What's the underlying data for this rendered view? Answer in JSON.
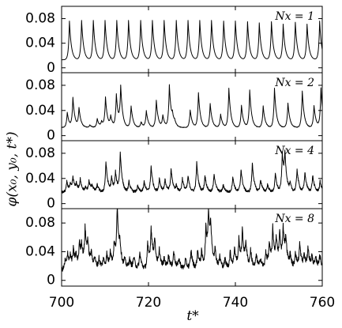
{
  "chart_data": {
    "type": "line",
    "title": "",
    "xlabel": "t*",
    "ylabel": "φ(x₀, y₀, t*)",
    "xlim": [
      700,
      760
    ],
    "x_ticks": [
      "700",
      "720",
      "740",
      "760"
    ],
    "x_tick_values": [
      700,
      720,
      740,
      760
    ],
    "grid": false,
    "legend": "none",
    "panels": [
      {
        "label": "Nx = 1",
        "ylim": [
          -0.008,
          0.1
        ],
        "y_ticks": [
          "0",
          "0.04",
          "0.08"
        ],
        "y_tick_values": [
          0,
          0.04,
          0.08
        ],
        "baseline": 0.013,
        "peaks": [
          [
            701.8,
            0.076
          ],
          [
            704.6,
            0.077
          ],
          [
            707.3,
            0.077
          ],
          [
            710.0,
            0.077
          ],
          [
            712.7,
            0.077
          ],
          [
            715.4,
            0.077
          ],
          [
            718.2,
            0.077
          ],
          [
            720.9,
            0.077
          ],
          [
            723.6,
            0.077
          ],
          [
            726.4,
            0.077
          ],
          [
            729.1,
            0.077
          ],
          [
            731.8,
            0.077
          ],
          [
            734.5,
            0.077
          ],
          [
            737.3,
            0.076
          ],
          [
            740.0,
            0.076
          ],
          [
            742.8,
            0.075
          ],
          [
            745.5,
            0.073
          ],
          [
            748.3,
            0.075
          ],
          [
            751.0,
            0.071
          ],
          [
            753.8,
            0.074
          ],
          [
            756.5,
            0.071
          ],
          [
            759.4,
            0.076
          ]
        ]
      },
      {
        "label": "Nx = 2",
        "ylim": [
          -0.008,
          0.1
        ],
        "y_ticks": [
          "0",
          "0.04",
          "0.08"
        ],
        "y_tick_values": [
          0,
          0.04,
          0.08
        ],
        "baseline": 0.013,
        "peaks": [
          [
            701.3,
            0.037
          ],
          [
            702.6,
            0.06
          ],
          [
            704.0,
            0.043
          ],
          [
            706.5,
            0.017
          ],
          [
            708.2,
            0.027
          ],
          [
            709.2,
            0.022
          ],
          [
            710.1,
            0.06
          ],
          [
            711.3,
            0.03
          ],
          [
            712.6,
            0.065
          ],
          [
            713.6,
            0.075
          ],
          [
            716.0,
            0.047
          ],
          [
            718.3,
            0.022
          ],
          [
            719.5,
            0.039
          ],
          [
            721.8,
            0.056
          ],
          [
            723.3,
            0.032
          ],
          [
            724.8,
            0.08
          ],
          [
            725.5,
            0.026
          ],
          [
            726.0,
            0.019
          ],
          [
            729.6,
            0.041
          ],
          [
            731.5,
            0.068
          ],
          [
            734.2,
            0.051
          ],
          [
            736.6,
            0.034
          ],
          [
            738.5,
            0.075
          ],
          [
            741.4,
            0.048
          ],
          [
            743.3,
            0.072
          ],
          [
            746.4,
            0.047
          ],
          [
            749.0,
            0.075
          ],
          [
            752.1,
            0.052
          ],
          [
            755.4,
            0.071
          ],
          [
            758.1,
            0.048
          ],
          [
            759.7,
            0.075
          ]
        ]
      },
      {
        "label": "Nx = 4",
        "ylim": [
          -0.008,
          0.1
        ],
        "y_ticks": [
          "0",
          "0.04",
          "0.08"
        ],
        "y_tick_values": [
          0,
          0.04,
          0.08
        ],
        "baseline": 0.018,
        "peaks": [
          [
            701.2,
            0.035
          ],
          [
            702.0,
            0.028
          ],
          [
            702.6,
            0.04
          ],
          [
            703.4,
            0.03
          ],
          [
            704.3,
            0.038
          ],
          [
            705.5,
            0.025
          ],
          [
            706.3,
            0.035
          ],
          [
            707.0,
            0.028
          ],
          [
            708.2,
            0.03
          ],
          [
            710.2,
            0.067
          ],
          [
            711.5,
            0.04
          ],
          [
            712.4,
            0.048
          ],
          [
            713.5,
            0.08
          ],
          [
            715.5,
            0.035
          ],
          [
            717.5,
            0.028
          ],
          [
            719.0,
            0.035
          ],
          [
            720.6,
            0.06
          ],
          [
            722.5,
            0.04
          ],
          [
            723.8,
            0.038
          ],
          [
            725.2,
            0.055
          ],
          [
            726.4,
            0.028
          ],
          [
            727.8,
            0.04
          ],
          [
            729.1,
            0.043
          ],
          [
            731.1,
            0.065
          ],
          [
            733.0,
            0.045
          ],
          [
            735.1,
            0.048
          ],
          [
            737.2,
            0.03
          ],
          [
            739.4,
            0.043
          ],
          [
            741.3,
            0.055
          ],
          [
            743.9,
            0.065
          ],
          [
            745.8,
            0.038
          ],
          [
            747.4,
            0.03
          ],
          [
            749.2,
            0.048
          ],
          [
            750.8,
            0.078
          ],
          [
            751.4,
            0.07
          ],
          [
            752.6,
            0.03
          ],
          [
            754.2,
            0.055
          ],
          [
            756.0,
            0.05
          ],
          [
            757.8,
            0.045
          ],
          [
            759.5,
            0.035
          ]
        ]
      },
      {
        "label": "Nx = 8",
        "ylim": [
          -0.008,
          0.1
        ],
        "y_ticks": [
          "0",
          "0.04",
          "0.08"
        ],
        "y_tick_values": [
          0,
          0.04,
          0.08
        ],
        "baseline": 0.015,
        "peaks": [
          [
            700.8,
            0.028
          ],
          [
            701.4,
            0.035
          ],
          [
            702.0,
            0.03
          ],
          [
            702.7,
            0.04
          ],
          [
            703.3,
            0.032
          ],
          [
            704.1,
            0.05
          ],
          [
            704.6,
            0.042
          ],
          [
            705.4,
            0.068
          ],
          [
            706.0,
            0.045
          ],
          [
            706.8,
            0.035
          ],
          [
            707.6,
            0.03
          ],
          [
            708.6,
            0.03
          ],
          [
            709.6,
            0.03
          ],
          [
            710.4,
            0.035
          ],
          [
            711.2,
            0.04
          ],
          [
            712.1,
            0.05
          ],
          [
            712.8,
            0.098
          ],
          [
            713.4,
            0.04
          ],
          [
            714.5,
            0.028
          ],
          [
            715.6,
            0.03
          ],
          [
            716.6,
            0.032
          ],
          [
            718.0,
            0.038
          ],
          [
            719.8,
            0.05
          ],
          [
            720.6,
            0.07
          ],
          [
            721.4,
            0.052
          ],
          [
            722.5,
            0.04
          ],
          [
            723.6,
            0.03
          ],
          [
            724.6,
            0.035
          ],
          [
            725.8,
            0.04
          ],
          [
            727.0,
            0.03
          ],
          [
            728.5,
            0.03
          ],
          [
            729.8,
            0.042
          ],
          [
            731.3,
            0.042
          ],
          [
            732.2,
            0.038
          ],
          [
            733.2,
            0.07
          ],
          [
            733.8,
            0.085
          ],
          [
            734.3,
            0.06
          ],
          [
            735.3,
            0.04
          ],
          [
            736.4,
            0.032
          ],
          [
            737.6,
            0.03
          ],
          [
            738.8,
            0.04
          ],
          [
            739.8,
            0.045
          ],
          [
            740.8,
            0.055
          ],
          [
            741.6,
            0.065
          ],
          [
            742.4,
            0.048
          ],
          [
            743.5,
            0.04
          ],
          [
            744.8,
            0.035
          ],
          [
            745.8,
            0.03
          ],
          [
            747.0,
            0.04
          ],
          [
            747.8,
            0.05
          ],
          [
            748.6,
            0.068
          ],
          [
            749.4,
            0.055
          ],
          [
            750.2,
            0.062
          ],
          [
            751.0,
            0.068
          ],
          [
            751.6,
            0.05
          ],
          [
            752.6,
            0.035
          ],
          [
            753.8,
            0.04
          ],
          [
            754.8,
            0.05
          ],
          [
            755.8,
            0.035
          ],
          [
            756.7,
            0.045
          ],
          [
            757.6,
            0.032
          ],
          [
            758.5,
            0.03
          ],
          [
            759.4,
            0.035
          ]
        ]
      }
    ]
  }
}
